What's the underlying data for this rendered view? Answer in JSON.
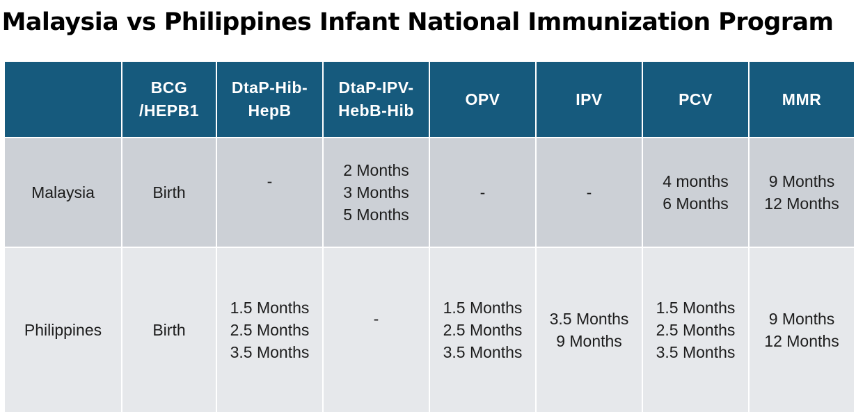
{
  "title": "Malaysia vs Philippines Infant National Immunization Program",
  "table": {
    "headers": {
      "country": "",
      "bcg_line1": "BCG",
      "bcg_line2": "/HEPB1",
      "dtap_hib_hepb_line1": "DtaP-Hib-",
      "dtap_hib_hepb_line2": "HepB",
      "dtap_ipv_hebb_hib_line1": "DtaP-IPV-",
      "dtap_ipv_hebb_hib_line2": "HebB-Hib",
      "opv": "OPV",
      "ipv": "IPV",
      "pcv": "PCV",
      "mmr": "MMR"
    },
    "rows": [
      {
        "country": "Malaysia",
        "bcg": [
          "Birth"
        ],
        "dtap_hib_hepb": [
          "-"
        ],
        "dtap_ipv_hebb_hib": [
          "2 Months",
          "3 Months",
          "5 Months"
        ],
        "opv": [
          "-"
        ],
        "ipv": [
          "-"
        ],
        "pcv": [
          "4 months",
          "6 Months"
        ],
        "mmr": [
          "9 Months",
          "12 Months"
        ]
      },
      {
        "country": "Philippines",
        "bcg": [
          "Birth"
        ],
        "dtap_hib_hepb": [
          "1.5 Months",
          "2.5 Months",
          "3.5 Months"
        ],
        "dtap_ipv_hebb_hib": [
          "-"
        ],
        "opv": [
          "1.5 Months",
          "2.5 Months",
          "3.5 Months"
        ],
        "ipv": [
          "3.5 Months",
          "9 Months"
        ],
        "pcv": [
          "1.5 Months",
          "2.5 Months",
          "3.5 Months"
        ],
        "mmr": [
          "9 Months",
          "12 Months"
        ]
      }
    ]
  },
  "colors": {
    "header_bg": "#165a7d",
    "header_text": "#ffffff",
    "row1_bg": "#ccd0d6",
    "row2_bg": "#e6e8eb"
  }
}
